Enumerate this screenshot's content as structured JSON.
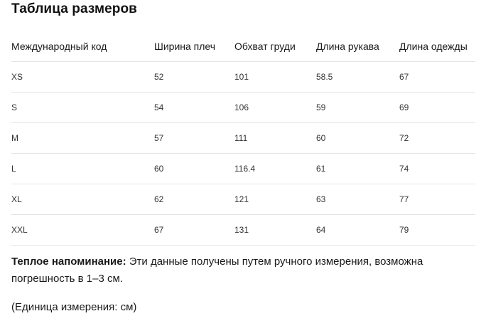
{
  "title": "Таблица размеров",
  "table": {
    "headers": [
      "Международный код",
      "Ширина плеч",
      "Обхват груди",
      "Длина рукава",
      "Длина одежды"
    ],
    "rows": [
      [
        "XS",
        "52",
        "101",
        "58.5",
        "67"
      ],
      [
        "S",
        "54",
        "106",
        "59",
        "69"
      ],
      [
        "M",
        "57",
        "111",
        "60",
        "72"
      ],
      [
        "L",
        "60",
        "116.4",
        "61",
        "74"
      ],
      [
        "XL",
        "62",
        "121",
        "63",
        "77"
      ],
      [
        "XXL",
        "67",
        "131",
        "64",
        "79"
      ]
    ]
  },
  "reminder": {
    "label": "Теплое напоминание:",
    "text": " Эти данные получены путем ручного измерения, возможна погрешность в 1–3 см."
  },
  "unit_note": "(Единица измерения: см)"
}
